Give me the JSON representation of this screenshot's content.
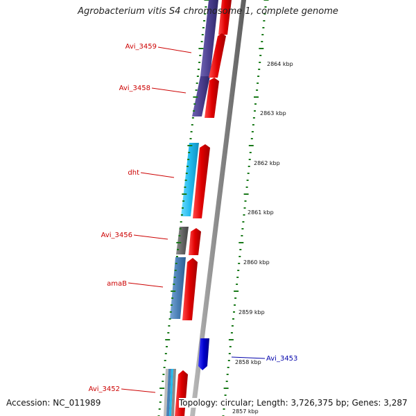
{
  "title": "Agrobacterium vitis S4 chromosome 1, complete genome",
  "footer": {
    "accession": "Accession: NC_011989",
    "summary": "Topology: circular; Length: 3,726,375 bp; Genes: 3,287"
  },
  "ticks": [
    {
      "label": "2864 kbp"
    },
    {
      "label": "2863 kbp"
    },
    {
      "label": "2862 kbp"
    },
    {
      "label": "2861 kbp"
    },
    {
      "label": "2860 kbp"
    },
    {
      "label": "2859 kbp"
    },
    {
      "label": "2858 kbp"
    },
    {
      "label": "2857 kbp"
    }
  ],
  "genes": [
    {
      "label": "Avi_3459",
      "strand": "reverse",
      "color": "#e00000"
    },
    {
      "label": "Avi_3458",
      "strand": "reverse",
      "color": "#e00000"
    },
    {
      "label": "dht",
      "strand": "reverse",
      "color": "#e00000"
    },
    {
      "label": "Avi_3456",
      "strand": "reverse",
      "color": "#e00000"
    },
    {
      "label": "amaB",
      "strand": "reverse",
      "color": "#e00000"
    },
    {
      "label": "Avi_3453",
      "strand": "forward",
      "color": "#0000cc"
    },
    {
      "label": "Avi_3452",
      "strand": "reverse",
      "color": "#e00000"
    }
  ],
  "colors": {
    "backbone": "#8a8a8a",
    "tick": "#1a7a1a",
    "cog_purple": "#4b3f8f",
    "cog_cyan": "#22bbee",
    "cog_gray": "#666666",
    "cog_steel": "#4a7fb5",
    "gene_red": "#e00000",
    "gene_blue": "#0000cc"
  }
}
